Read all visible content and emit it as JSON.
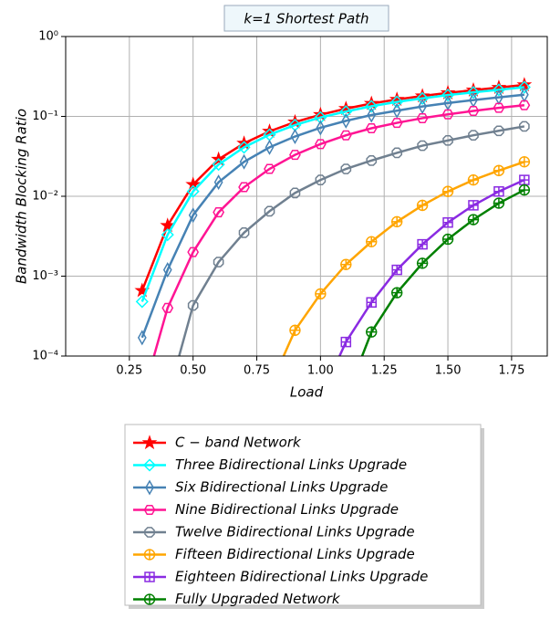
{
  "chart_data": {
    "type": "line",
    "title": "k=1 Shortest Path",
    "x_label": "Load",
    "y_label": "Bandwidth Blocking Ratio",
    "x": [
      0.3,
      0.4,
      0.5,
      0.6,
      0.7,
      0.8,
      0.9,
      1.0,
      1.1,
      1.2,
      1.3,
      1.4,
      1.5,
      1.6,
      1.7,
      1.8
    ],
    "xlim": [
      0,
      1.89
    ],
    "xticks": [
      0.25,
      {
        "value": 0.5,
        "label": "0.50"
      },
      0.75,
      {
        "value": 1.0,
        "label": "1.00"
      },
      1.25,
      {
        "value": 1.5,
        "label": "1.50"
      },
      1.75
    ],
    "ylim": [
      0.0001,
      1
    ],
    "yscale": "log",
    "yticks": [
      {
        "value": 0.0001,
        "label": "10⁻⁴"
      },
      {
        "value": 0.001,
        "label": "10⁻³"
      },
      {
        "value": 0.01,
        "label": "10⁻²"
      },
      {
        "value": 0.1,
        "label": "10⁻¹"
      },
      {
        "value": 1,
        "label": "10⁰"
      }
    ],
    "grid": true,
    "legend": "below",
    "series": [
      {
        "name": "C − band Network",
        "color": "#ff0000",
        "marker": "star",
        "values": [
          0.00066,
          0.0043,
          0.014,
          0.029,
          0.046,
          0.065,
          0.085,
          0.105,
          0.125,
          0.145,
          0.163,
          0.18,
          0.197,
          0.213,
          0.23,
          0.248
        ]
      },
      {
        "name": "Three Bidirectional Links Upgrade",
        "color": "#00ffff",
        "marker": "diamond",
        "values": [
          0.00048,
          0.0033,
          0.0115,
          0.025,
          0.041,
          0.059,
          0.078,
          0.097,
          0.115,
          0.134,
          0.152,
          0.168,
          0.185,
          0.2,
          0.215,
          0.232
        ]
      },
      {
        "name": "Six Bidirectional Links Upgrade",
        "color": "#4682b4",
        "marker": "thin_diamond",
        "values": [
          0.00017,
          0.0012,
          0.0058,
          0.015,
          0.027,
          0.041,
          0.056,
          0.072,
          0.088,
          0.104,
          0.118,
          0.133,
          0.147,
          0.16,
          0.173,
          0.187
        ]
      },
      {
        "name": "Nine Bidirectional Links Upgrade",
        "color": "#ff1493",
        "marker": "hexagon",
        "values": [
          3e-05,
          0.0004,
          0.002,
          0.0063,
          0.013,
          0.022,
          0.033,
          0.045,
          0.058,
          0.071,
          0.083,
          0.095,
          0.106,
          0.117,
          0.128,
          0.138
        ]
      },
      {
        "name": "Twelve Bidirectional Links Upgrade",
        "color": "#708090",
        "marker": "octagon",
        "values": [
          null,
          3e-05,
          0.00043,
          0.0015,
          0.0035,
          0.0065,
          0.011,
          0.016,
          0.022,
          0.028,
          0.035,
          0.043,
          0.05,
          0.058,
          0.066,
          0.075
        ]
      },
      {
        "name": "Fifteen Bidirectional Links Upgrade",
        "color": "#ffa500",
        "marker": "plus_circle",
        "values": [
          null,
          null,
          null,
          null,
          null,
          4e-05,
          0.00021,
          0.0006,
          0.0014,
          0.0027,
          0.0048,
          0.0077,
          0.0115,
          0.016,
          0.021,
          0.027
        ]
      },
      {
        "name": "Eighteen Bidirectional Links Upgrade",
        "color": "#8a2be2",
        "marker": "plus_square",
        "values": [
          null,
          null,
          null,
          null,
          null,
          null,
          null,
          3e-05,
          0.00015,
          0.00047,
          0.0012,
          0.0025,
          0.0047,
          0.0077,
          0.0115,
          0.016
        ]
      },
      {
        "name": "Fully Upgraded Network",
        "color": "#008000",
        "marker": "plus_circle",
        "values": [
          null,
          null,
          null,
          null,
          null,
          null,
          null,
          null,
          3e-05,
          0.0002,
          0.00062,
          0.00145,
          0.0029,
          0.0051,
          0.0082,
          0.012
        ]
      }
    ]
  }
}
